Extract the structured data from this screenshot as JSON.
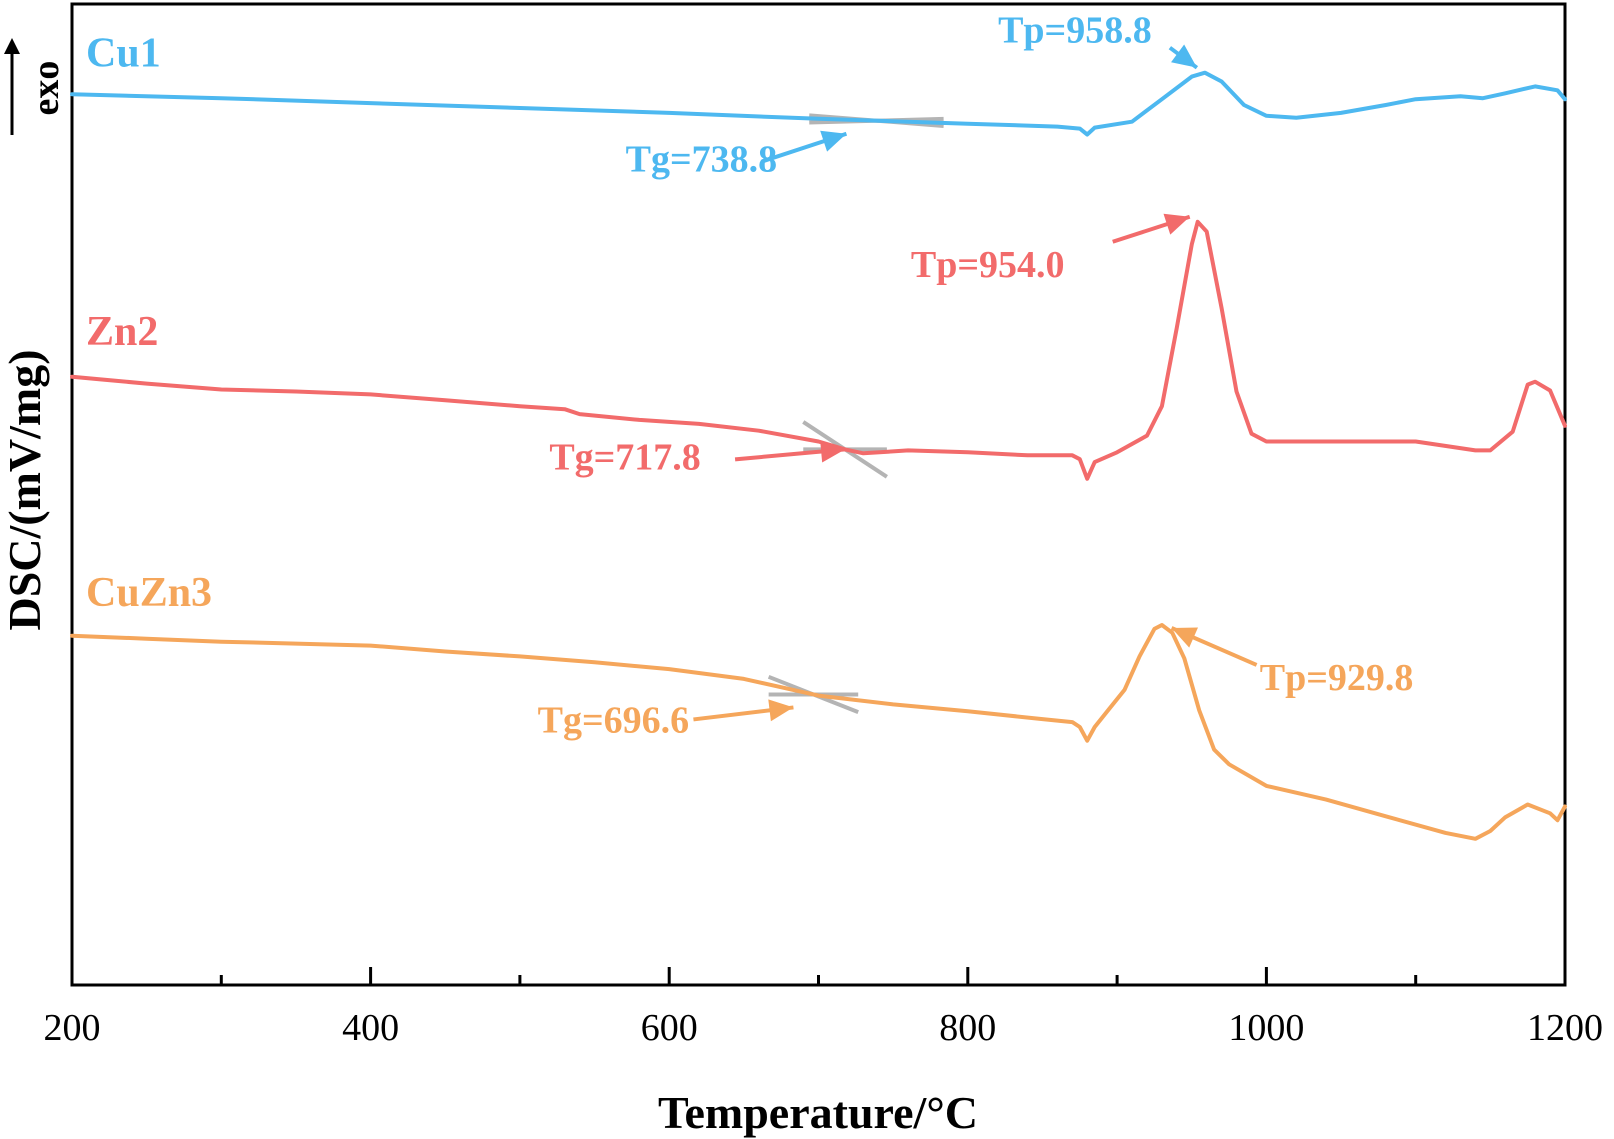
{
  "chart_data": {
    "type": "line",
    "xlabel": "Temperature/°C",
    "ylabel": "DSC/(mV/mg)",
    "exo_label": "exo",
    "xlim": [
      200,
      1200
    ],
    "ylim": [
      0,
      100
    ],
    "x_ticks": [
      "200",
      "400",
      "600",
      "800",
      "1000",
      "1200"
    ],
    "y_ticks_shown": false,
    "grid": false,
    "series": [
      {
        "name": "Cu1",
        "color": "#4db8f0",
        "points": [
          [
            200,
            90.8
          ],
          [
            300,
            90.4
          ],
          [
            400,
            89.9
          ],
          [
            500,
            89.4
          ],
          [
            600,
            88.9
          ],
          [
            700,
            88.3
          ],
          [
            800,
            87.8
          ],
          [
            860,
            87.5
          ],
          [
            875,
            87.3
          ],
          [
            880,
            86.7
          ],
          [
            885,
            87.4
          ],
          [
            910,
            88.0
          ],
          [
            930,
            90.3
          ],
          [
            950,
            92.6
          ],
          [
            958.8,
            93.0
          ],
          [
            970,
            92.1
          ],
          [
            985,
            89.7
          ],
          [
            1000,
            88.6
          ],
          [
            1020,
            88.4
          ],
          [
            1050,
            88.9
          ],
          [
            1080,
            89.7
          ],
          [
            1100,
            90.3
          ],
          [
            1130,
            90.6
          ],
          [
            1145,
            90.4
          ],
          [
            1160,
            90.9
          ],
          [
            1180,
            91.6
          ],
          [
            1195,
            91.2
          ],
          [
            1200,
            90.3
          ]
        ]
      },
      {
        "name": "Zn2",
        "color": "#f26b6b",
        "points": [
          [
            200,
            62.0
          ],
          [
            250,
            61.3
          ],
          [
            300,
            60.7
          ],
          [
            350,
            60.5
          ],
          [
            400,
            60.2
          ],
          [
            450,
            59.6
          ],
          [
            500,
            59.0
          ],
          [
            530,
            58.7
          ],
          [
            540,
            58.2
          ],
          [
            580,
            57.6
          ],
          [
            620,
            57.2
          ],
          [
            660,
            56.5
          ],
          [
            700,
            55.4
          ],
          [
            717.8,
            54.6
          ],
          [
            730,
            54.2
          ],
          [
            760,
            54.5
          ],
          [
            800,
            54.3
          ],
          [
            840,
            54.0
          ],
          [
            870,
            54.0
          ],
          [
            875,
            53.6
          ],
          [
            880,
            51.6
          ],
          [
            885,
            53.3
          ],
          [
            900,
            54.3
          ],
          [
            920,
            56.0
          ],
          [
            930,
            59.0
          ],
          [
            940,
            67.0
          ],
          [
            950,
            75.5
          ],
          [
            954,
            77.8
          ],
          [
            960,
            76.8
          ],
          [
            970,
            69.0
          ],
          [
            980,
            60.5
          ],
          [
            990,
            56.2
          ],
          [
            1000,
            55.4
          ],
          [
            1050,
            55.4
          ],
          [
            1100,
            55.4
          ],
          [
            1140,
            54.5
          ],
          [
            1150,
            54.5
          ],
          [
            1165,
            56.4
          ],
          [
            1175,
            61.2
          ],
          [
            1180,
            61.5
          ],
          [
            1190,
            60.6
          ],
          [
            1200,
            57.0
          ]
        ]
      },
      {
        "name": "CuZn3",
        "color": "#f5a65b",
        "points": [
          [
            200,
            35.6
          ],
          [
            250,
            35.3
          ],
          [
            300,
            35.0
          ],
          [
            350,
            34.8
          ],
          [
            400,
            34.6
          ],
          [
            450,
            34.0
          ],
          [
            500,
            33.5
          ],
          [
            550,
            32.9
          ],
          [
            600,
            32.2
          ],
          [
            650,
            31.2
          ],
          [
            700,
            29.5
          ],
          [
            750,
            28.6
          ],
          [
            800,
            27.9
          ],
          [
            850,
            27.1
          ],
          [
            870,
            26.8
          ],
          [
            875,
            26.3
          ],
          [
            880,
            24.9
          ],
          [
            885,
            26.3
          ],
          [
            895,
            28.2
          ],
          [
            905,
            30.1
          ],
          [
            915,
            33.5
          ],
          [
            925,
            36.3
          ],
          [
            930,
            36.7
          ],
          [
            937,
            35.9
          ],
          [
            945,
            33.3
          ],
          [
            955,
            28.0
          ],
          [
            965,
            24.0
          ],
          [
            975,
            22.5
          ],
          [
            1000,
            20.3
          ],
          [
            1040,
            18.9
          ],
          [
            1080,
            17.2
          ],
          [
            1120,
            15.5
          ],
          [
            1140,
            14.9
          ],
          [
            1150,
            15.7
          ],
          [
            1160,
            17.1
          ],
          [
            1175,
            18.4
          ],
          [
            1190,
            17.5
          ],
          [
            1195,
            16.8
          ],
          [
            1200,
            18.2
          ]
        ]
      }
    ],
    "annotations": [
      {
        "text": "Tp=958.8",
        "series": "Cu1",
        "x": 958.8,
        "y": 93.0
      },
      {
        "text": "Tg=738.8",
        "series": "Cu1",
        "x": 738.8,
        "y": 88.0
      },
      {
        "text": "Tp=954.0",
        "series": "Zn2",
        "x": 954.0,
        "y": 77.8
      },
      {
        "text": "Tg=717.8",
        "series": "Zn2",
        "x": 717.8,
        "y": 54.6
      },
      {
        "text": "Tp=929.8",
        "series": "CuZn3",
        "x": 929.8,
        "y": 36.7
      },
      {
        "text": "Tg=696.6",
        "series": "CuZn3",
        "x": 696.6,
        "y": 28.6
      }
    ]
  }
}
